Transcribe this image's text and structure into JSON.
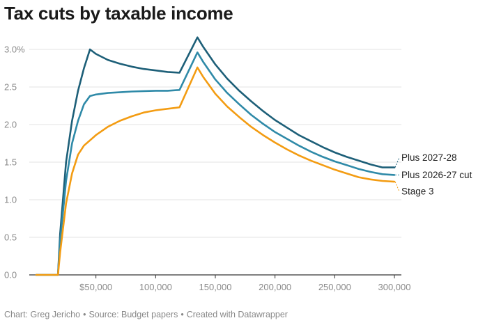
{
  "title": "Tax cuts by taxable income",
  "footer": {
    "chart_by": "Chart: Greg Jericho",
    "source": "Source: Budget papers",
    "created": "Created with Datawrapper",
    "separator": "•"
  },
  "colors": {
    "plus_2027_28": "#1d5f78",
    "plus_2026_27": "#2f8aa8",
    "stage_3": "#f39c12",
    "grid": "#e3e3e3",
    "axis": "#333333",
    "tick_text": "#8a8a8a"
  },
  "chart_data": {
    "type": "line",
    "title": "Tax cuts by taxable income",
    "xlabel": "",
    "ylabel": "",
    "xlim": [
      0,
      300000
    ],
    "ylim": [
      0,
      3.0
    ],
    "x_ticks": [
      {
        "value": 50000,
        "label": "$50,000"
      },
      {
        "value": 100000,
        "label": "100,000"
      },
      {
        "value": 150000,
        "label": "150,000"
      },
      {
        "value": 200000,
        "label": "200,000"
      },
      {
        "value": 250000,
        "label": "250,000"
      },
      {
        "value": 300000,
        "label": "300,000"
      }
    ],
    "y_ticks": [
      {
        "value": 0,
        "label": "0.0"
      },
      {
        "value": 0.5,
        "label": "0.5"
      },
      {
        "value": 1.0,
        "label": "1.0"
      },
      {
        "value": 1.5,
        "label": "1.5"
      },
      {
        "value": 2.0,
        "label": "2.0"
      },
      {
        "value": 2.5,
        "label": "2.5"
      },
      {
        "value": 3.0,
        "label": "3.0%"
      }
    ],
    "grid": "horizontal",
    "legend": "direct labels at right end of lines",
    "series": [
      {
        "name": "Plus 2027-28",
        "color": "#1d5f78",
        "x": [
          0,
          18200,
          20000,
          25000,
          30000,
          35000,
          40000,
          45000,
          50000,
          60000,
          70000,
          80000,
          90000,
          100000,
          110000,
          120000,
          135000,
          140000,
          150000,
          160000,
          170000,
          180000,
          190000,
          200000,
          210000,
          220000,
          230000,
          240000,
          250000,
          260000,
          270000,
          280000,
          290000,
          300000
        ],
        "y": [
          0,
          0,
          0.55,
          1.5,
          2.05,
          2.45,
          2.75,
          3.0,
          2.94,
          2.86,
          2.81,
          2.77,
          2.74,
          2.72,
          2.7,
          2.69,
          3.16,
          3.03,
          2.8,
          2.61,
          2.45,
          2.31,
          2.18,
          2.06,
          1.96,
          1.86,
          1.78,
          1.7,
          1.63,
          1.57,
          1.52,
          1.47,
          1.43,
          1.43
        ]
      },
      {
        "name": "Plus 2026-27 cut",
        "color": "#2f8aa8",
        "x": [
          0,
          18200,
          20000,
          25000,
          30000,
          35000,
          40000,
          45000,
          50000,
          60000,
          70000,
          80000,
          90000,
          100000,
          110000,
          120000,
          135000,
          140000,
          150000,
          160000,
          170000,
          180000,
          190000,
          200000,
          210000,
          220000,
          230000,
          240000,
          250000,
          260000,
          270000,
          280000,
          290000,
          300000
        ],
        "y": [
          0,
          0,
          0.45,
          1.25,
          1.75,
          2.05,
          2.27,
          2.38,
          2.4,
          2.42,
          2.43,
          2.44,
          2.445,
          2.45,
          2.45,
          2.46,
          2.96,
          2.83,
          2.6,
          2.42,
          2.27,
          2.13,
          2.01,
          1.9,
          1.81,
          1.72,
          1.64,
          1.57,
          1.51,
          1.46,
          1.41,
          1.37,
          1.34,
          1.33
        ]
      },
      {
        "name": "Stage 3",
        "color": "#f39c12",
        "x": [
          0,
          18200,
          20000,
          25000,
          30000,
          35000,
          40000,
          45000,
          50000,
          60000,
          70000,
          80000,
          90000,
          100000,
          110000,
          120000,
          135000,
          140000,
          150000,
          160000,
          170000,
          180000,
          190000,
          200000,
          210000,
          220000,
          230000,
          240000,
          250000,
          260000,
          270000,
          280000,
          290000,
          300000
        ],
        "y": [
          0,
          0,
          0.3,
          0.95,
          1.35,
          1.6,
          1.72,
          1.79,
          1.86,
          1.97,
          2.05,
          2.11,
          2.16,
          2.19,
          2.21,
          2.23,
          2.76,
          2.63,
          2.41,
          2.24,
          2.1,
          1.97,
          1.86,
          1.76,
          1.67,
          1.59,
          1.52,
          1.46,
          1.4,
          1.35,
          1.3,
          1.27,
          1.25,
          1.24
        ]
      }
    ]
  }
}
